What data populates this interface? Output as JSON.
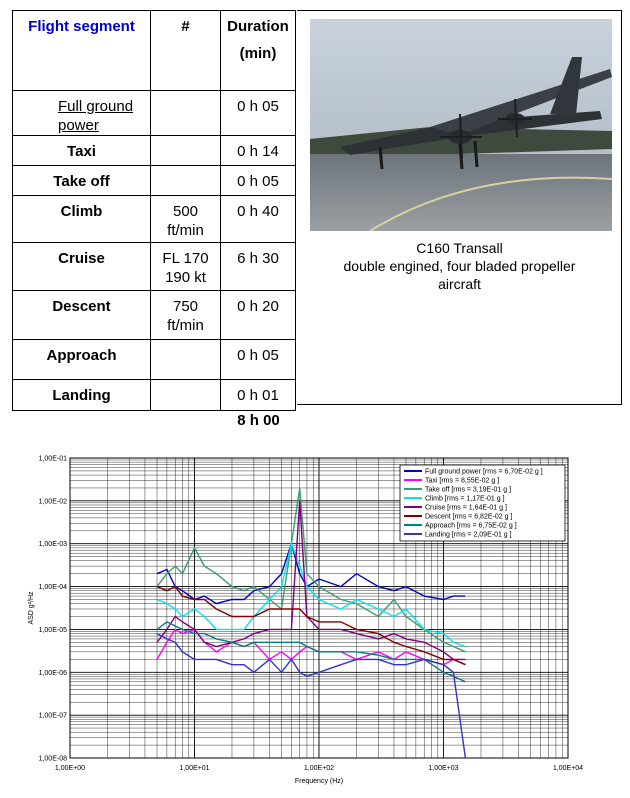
{
  "table": {
    "headers": {
      "segment": "Flight segment",
      "rate": "#",
      "duration": "Duration",
      "duration_unit": "(min)"
    },
    "rows": [
      {
        "segment": "Full ground power",
        "duration": "0 h 05"
      },
      {
        "segment": "Taxi",
        "duration": "0 h 14"
      },
      {
        "segment": "Take off",
        "duration": "0 h 05"
      },
      {
        "segment": "Climb",
        "rate": "500\nft/min",
        "duration": "0 h 40"
      },
      {
        "segment": "Cruise",
        "rate": "FL 170\n190 kt",
        "duration": "6 h 30"
      },
      {
        "segment": "Descent",
        "rate": "750\nft/min",
        "duration": "0 h 20"
      },
      {
        "segment": "Approach",
        "duration": "0 h 05"
      },
      {
        "segment": "Landing",
        "duration": "0 h 01"
      }
    ],
    "total": "8 h 00"
  },
  "photo": {
    "caption": [
      "C160 Transall",
      "double engined, four bladed propeller",
      "aircraft"
    ]
  },
  "chart_data": {
    "type": "line",
    "x_label": "Frequency (Hz)",
    "y_label": "ASD g²/Hz",
    "log_x": true,
    "log_y": true,
    "grid": true,
    "minor_grid": true,
    "legend": "top-right",
    "xlim": [
      1,
      10000
    ],
    "ylim": [
      1e-08,
      0.1
    ],
    "xticks": [
      {
        "value": 1,
        "label": "1,00E+00"
      },
      {
        "value": 10,
        "label": "1,00E+01"
      },
      {
        "value": 100,
        "label": "1,00E+02"
      },
      {
        "value": 1000,
        "label": "1,00E+03"
      },
      {
        "value": 10000,
        "label": "1,00E+04"
      }
    ],
    "yticks": [
      {
        "value": 1e-08,
        "label": "1,00E-08"
      },
      {
        "value": 1e-07,
        "label": "1,00E-07"
      },
      {
        "value": 1e-06,
        "label": "1,00E-06"
      },
      {
        "value": 1e-05,
        "label": "1,00E-05"
      },
      {
        "value": 0.0001,
        "label": "1,00E-04"
      },
      {
        "value": 0.001,
        "label": "1,00E-03"
      },
      {
        "value": 0.01,
        "label": "1,00E-02"
      },
      {
        "value": 0.1,
        "label": "1,00E-01"
      }
    ],
    "x": [
      5,
      6,
      7,
      8,
      10,
      12,
      15,
      20,
      25,
      30,
      40,
      50,
      60,
      70,
      80,
      100,
      150,
      200,
      300,
      400,
      500,
      700,
      1000,
      1200,
      1500
    ],
    "series": [
      {
        "name": "Full ground power [rms =  6,70E-02 g ]",
        "color": "#0000cc",
        "values": [
          0.0002,
          0.00025,
          0.0001,
          8e-05,
          5e-05,
          6e-05,
          4e-05,
          5e-05,
          5e-05,
          8e-05,
          0.0001,
          0.0002,
          0.001,
          0.0002,
          0.0001,
          0.00015,
          0.0001,
          0.0002,
          0.0001,
          8e-05,
          0.0001,
          6e-05,
          5e-05,
          6e-05,
          6e-05
        ]
      },
      {
        "name": "Taxi [rms =  8,55E-02 g ]",
        "color": "#ff00ff",
        "values": [
          2e-06,
          5e-06,
          1e-05,
          8e-06,
          1e-05,
          5e-06,
          3e-06,
          5e-06,
          4e-06,
          5e-06,
          2e-06,
          3e-06,
          2e-06,
          3e-06,
          4e-06,
          3e-06,
          3e-06,
          2e-06,
          3e-06,
          2e-06,
          3e-06,
          2e-06,
          1.5e-06,
          2e-06,
          1.5e-06
        ]
      },
      {
        "name": "Take off [rms =  3,19E-01 g ]",
        "color": "#3a9e6e",
        "values": [
          0.0001,
          0.0002,
          0.0003,
          0.0002,
          0.0008,
          0.0003,
          0.0002,
          0.0001,
          8e-05,
          0.0001,
          5e-05,
          3e-05,
          0.001,
          0.02,
          0.0002,
          0.0001,
          5e-05,
          4e-05,
          2e-05,
          5e-05,
          2e-05,
          1e-05,
          5e-06,
          4e-06,
          3e-06
        ]
      },
      {
        "name": "Climb [rms =  1,17E-01 g ]",
        "color": "#00e5ee",
        "values": [
          5e-05,
          4e-05,
          3e-05,
          2e-05,
          3e-05,
          2e-05,
          1e-05,
          1e-05,
          1e-05,
          2e-05,
          5e-05,
          0.0001,
          0.001,
          0.0003,
          0.0001,
          5e-05,
          3e-05,
          5e-05,
          3e-05,
          2e-05,
          3e-05,
          1e-05,
          8e-06,
          5e-06,
          4e-06
        ]
      },
      {
        "name": "Cruise [rms =  1,64E-01 g ]",
        "color": "#800080",
        "values": [
          5e-06,
          1e-05,
          2e-05,
          1.5e-05,
          1e-05,
          5e-06,
          4e-06,
          5e-06,
          6e-06,
          8e-06,
          1e-05,
          1e-05,
          1e-05,
          0.01,
          2e-05,
          1e-05,
          1e-05,
          8e-06,
          6e-06,
          8e-06,
          6e-06,
          5e-06,
          3e-06,
          2e-06,
          2e-06
        ]
      },
      {
        "name": "Descent [rms =  6,82E-02 g ]",
        "color": "#800000",
        "values": [
          0.0001,
          8e-05,
          0.0001,
          6e-05,
          5e-05,
          5e-05,
          3e-05,
          2e-05,
          2e-05,
          2e-05,
          3e-05,
          3e-05,
          3e-05,
          3e-05,
          2e-05,
          1.5e-05,
          1.5e-05,
          1e-05,
          8e-06,
          5e-06,
          4e-06,
          3e-06,
          2e-06,
          2e-06,
          1.5e-06
        ]
      },
      {
        "name": "Approach [rms =  6,75E-02 g ]",
        "color": "#008080",
        "values": [
          1e-05,
          1.5e-05,
          1.2e-05,
          1e-05,
          8e-06,
          8e-06,
          6e-06,
          5e-06,
          4e-06,
          5e-06,
          5e-06,
          5e-06,
          5e-06,
          5e-06,
          4e-06,
          3e-06,
          3e-06,
          3e-06,
          2.5e-06,
          2e-06,
          2e-06,
          2e-06,
          1e-06,
          8e-07,
          6e-07
        ]
      },
      {
        "name": "Landing [rms =  2,09E-01 g ]",
        "color": "#3333cc",
        "values": [
          8e-06,
          6e-06,
          5e-06,
          3e-06,
          2e-06,
          2e-06,
          2e-06,
          1.5e-06,
          1.5e-06,
          1e-06,
          2e-06,
          1e-06,
          2e-06,
          1e-06,
          8e-07,
          1e-06,
          1.5e-06,
          2e-06,
          2e-06,
          1.5e-06,
          1.5e-06,
          2e-06,
          1.5e-06,
          1e-06,
          1e-08
        ]
      }
    ]
  }
}
